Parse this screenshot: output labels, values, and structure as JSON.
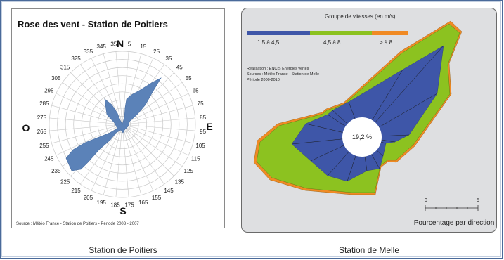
{
  "captions": {
    "left": "Station de Poitiers",
    "right": "Station de Melle"
  },
  "poitiers": {
    "title": "Rose des vent - Station de Poitiers",
    "source": "Source : Météo France - Station de Poitiers - Période 2003 - 2007",
    "compass": {
      "north": "N",
      "south": "S",
      "east": "E",
      "west": "O"
    },
    "directions": [
      5,
      15,
      25,
      35,
      45,
      55,
      65,
      75,
      85,
      95,
      105,
      115,
      125,
      135,
      145,
      155,
      165,
      175,
      185,
      195,
      205,
      215,
      225,
      235,
      245,
      255,
      265,
      275,
      285,
      295,
      305,
      315,
      325,
      335,
      345,
      355
    ]
  },
  "melle": {
    "legend_title": "Groupe de vitesses (en m/s)",
    "legend": [
      {
        "label": "1,5 à 4,5",
        "color": "#3e56a8"
      },
      {
        "label": "4,5 à 8",
        "color": "#8cc220"
      },
      {
        "label": "> à 8",
        "color": "#f08a24"
      }
    ],
    "info": [
      "Réalisation : ENCIS Energies vertes",
      "Sources : Météo France - Station de Melle",
      "Période 2000-2010"
    ],
    "center_label": "19,2 %",
    "scale": {
      "min": "0",
      "max": "5",
      "caption": "Pourcentage par direction"
    }
  },
  "colors": {
    "rose_fill": "#5b82b8",
    "grid": "#c8c8c8"
  }
}
